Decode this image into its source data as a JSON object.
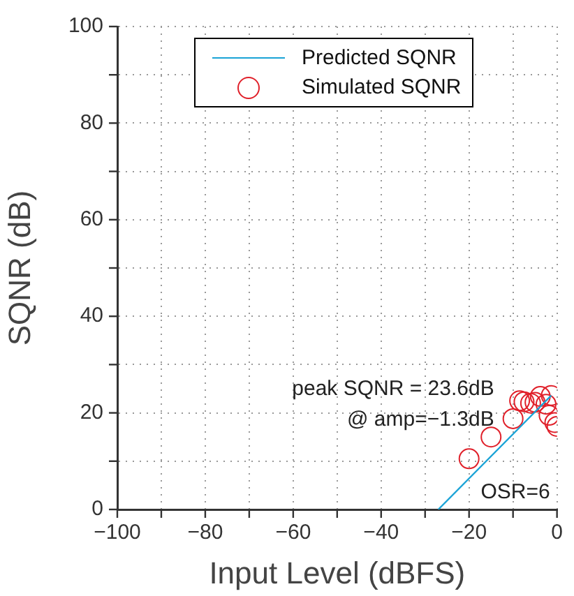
{
  "chart_data": {
    "type": "scatter",
    "xlabel": "Input Level (dBFS)",
    "ylabel": "SQNR (dB)",
    "xlim": [
      -100,
      0
    ],
    "ylim": [
      0,
      100
    ],
    "xticks": [
      {
        "value": -100,
        "label": "−100"
      },
      {
        "value": -90,
        "label": null
      },
      {
        "value": -80,
        "label": "−80"
      },
      {
        "value": -70,
        "label": null
      },
      {
        "value": -60,
        "label": "−60"
      },
      {
        "value": -50,
        "label": null
      },
      {
        "value": -40,
        "label": "−40"
      },
      {
        "value": -30,
        "label": null
      },
      {
        "value": -20,
        "label": "−20"
      },
      {
        "value": -10,
        "label": null
      },
      {
        "value": 0,
        "label": "0"
      }
    ],
    "yticks": [
      0,
      {
        "value": 10,
        "label": null
      },
      20,
      {
        "value": 30,
        "label": null
      },
      40,
      {
        "value": 50,
        "label": null
      },
      60,
      {
        "value": 70,
        "label": null
      },
      80,
      {
        "value": 90,
        "label": null
      },
      100
    ],
    "grid": true,
    "legend": "top",
    "annotations": [
      "peak SQNR = 23.6dB",
      "@ amp=−1.3dB",
      "OSR=6"
    ],
    "series": [
      {
        "name": "Predicted SQNR",
        "type": "line",
        "color": "#1aa3d6",
        "marker": "none",
        "line_style": "solid",
        "x": [
          -27,
          -1.3
        ],
        "values": [
          0,
          23.6
        ]
      },
      {
        "name": "Simulated SQNR",
        "type": "scatter",
        "color": "#e0202a",
        "marker": "circle",
        "x": [
          -20,
          -15,
          -10,
          -8.5,
          -7.5,
          -6,
          -5,
          -3.8,
          -2.5,
          -1.3,
          -1.8,
          -0.5,
          0
        ],
        "values": [
          10.5,
          15,
          18.8,
          22.5,
          22.3,
          22,
          22.2,
          23.4,
          21.8,
          23.6,
          19.5,
          18,
          17.2
        ]
      }
    ]
  }
}
